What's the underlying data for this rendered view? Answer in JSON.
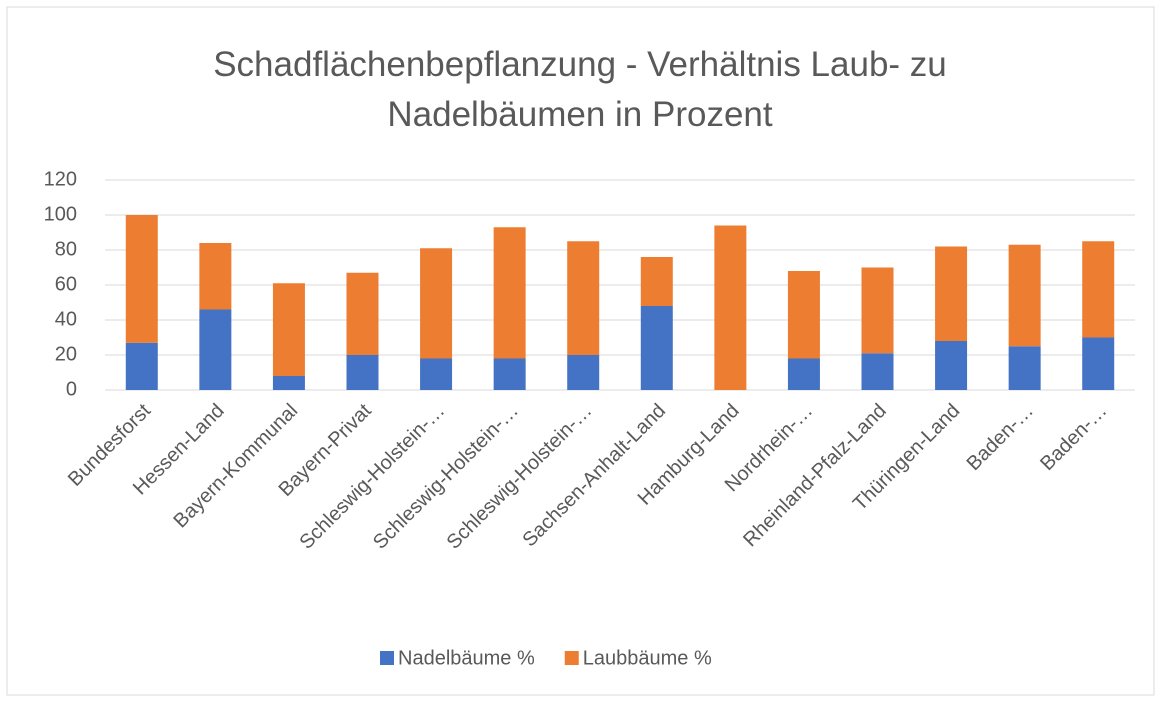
{
  "chart_data": {
    "type": "stacked_bar",
    "title": "Schadflächenbepflanzung -  Verhältnis Laub- zu Nadelbäumen in Prozent",
    "categories": [
      "Bundesforst",
      "Hessen-Land",
      "Bayern-Kommunal",
      "Bayern-Privat",
      "Schleswig-Holstein-…",
      "Schleswig-Holstein-…",
      "Schleswig-Holstein-…",
      "Sachsen-Anhalt-Land",
      "Hamburg-Land",
      "Nordrhein-…",
      "Rheinland-Pfalz-Land",
      "Thüringen-Land",
      "Baden-…",
      "Baden-…"
    ],
    "series": [
      {
        "name": "Nadelbäume %",
        "color": "#4472c4",
        "values": [
          27,
          46,
          8,
          20,
          18,
          18,
          20,
          48,
          0,
          18,
          21,
          28,
          25,
          30
        ]
      },
      {
        "name": "Laubbäume %",
        "color": "#ed7d31",
        "values": [
          73,
          38,
          53,
          47,
          63,
          75,
          65,
          28,
          94,
          50,
          49,
          54,
          58,
          55
        ]
      }
    ],
    "ylim": [
      0,
      120
    ],
    "yticks": [
      0,
      20,
      40,
      60,
      80,
      100,
      120
    ],
    "grid": true,
    "legend": "bottom"
  }
}
